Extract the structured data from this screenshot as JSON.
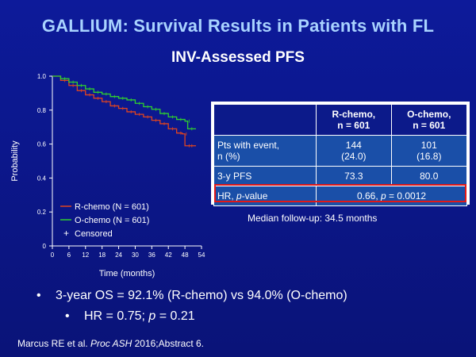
{
  "title": "GALLIUM: Survival Results in Patients with FL",
  "subtitle": "INV-Assessed PFS",
  "chart_data": {
    "type": "line",
    "xlabel": "Time (months)",
    "ylabel": "Probability",
    "xlim": [
      0,
      54
    ],
    "ylim": [
      0,
      1.0
    ],
    "xticks": [
      "0",
      "6",
      "12",
      "18",
      "24",
      "30",
      "36",
      "42",
      "48",
      "54"
    ],
    "yticks": [
      "0",
      "0.2",
      "0.4",
      "0.6",
      "0.8",
      "1.0"
    ],
    "legend_position": "bottom-left",
    "censored_label": "Censored",
    "series": [
      {
        "name": "R-chemo (N = 601)",
        "color": "#e0441f",
        "x": [
          0,
          3,
          6,
          9,
          12,
          15,
          18,
          21,
          24,
          27,
          30,
          33,
          36,
          39,
          42,
          45,
          47,
          48,
          49,
          52
        ],
        "y": [
          1.0,
          0.975,
          0.945,
          0.915,
          0.89,
          0.87,
          0.85,
          0.825,
          0.81,
          0.79,
          0.775,
          0.76,
          0.74,
          0.72,
          0.69,
          0.665,
          0.66,
          0.59,
          0.59,
          0.59
        ]
      },
      {
        "name": "O-chemo (N = 601)",
        "color": "#2fd02f",
        "x": [
          0,
          3,
          6,
          9,
          12,
          15,
          18,
          21,
          24,
          27,
          30,
          33,
          36,
          39,
          42,
          45,
          48,
          49,
          52
        ],
        "y": [
          1.0,
          0.985,
          0.965,
          0.945,
          0.925,
          0.905,
          0.895,
          0.88,
          0.87,
          0.86,
          0.84,
          0.82,
          0.805,
          0.78,
          0.76,
          0.745,
          0.735,
          0.69,
          0.69
        ]
      }
    ]
  },
  "table": {
    "columns": [
      "",
      "R-chemo,\nn = 601",
      "O-chemo,\nn = 601"
    ],
    "rows": [
      {
        "label": "Pts with event,\nn (%)",
        "r_chemo": "144\n(24.0)",
        "o_chemo": "101\n(16.8)"
      },
      {
        "label": "3-y PFS",
        "r_chemo": "73.3",
        "o_chemo": "80.0"
      }
    ],
    "hr_row": {
      "label_prefix": "HR, ",
      "label_italic": "p",
      "label_suffix": "-value",
      "value_prefix": "0.66, ",
      "value_italic": "p",
      "value_suffix": " = 0.0012"
    }
  },
  "followup": "Median follow-up: 34.5 months",
  "bullets": {
    "os": "3-year OS = 92.1% (R-chemo) vs 94.0% (O-chemo)",
    "hr_prefix": "HR = 0.75; ",
    "hr_italic": "p",
    "hr_suffix": " = 0.21"
  },
  "citation": {
    "authors": "Marcus RE et al. ",
    "journal": "Proc ASH",
    "rest": " 2016;Abstract 6."
  },
  "colors": {
    "background": "#0d1a9a",
    "title": "#a9d3ff",
    "table_header": "#0c1a8a",
    "table_body": "#1a4fa8",
    "highlight": "#e01818"
  }
}
